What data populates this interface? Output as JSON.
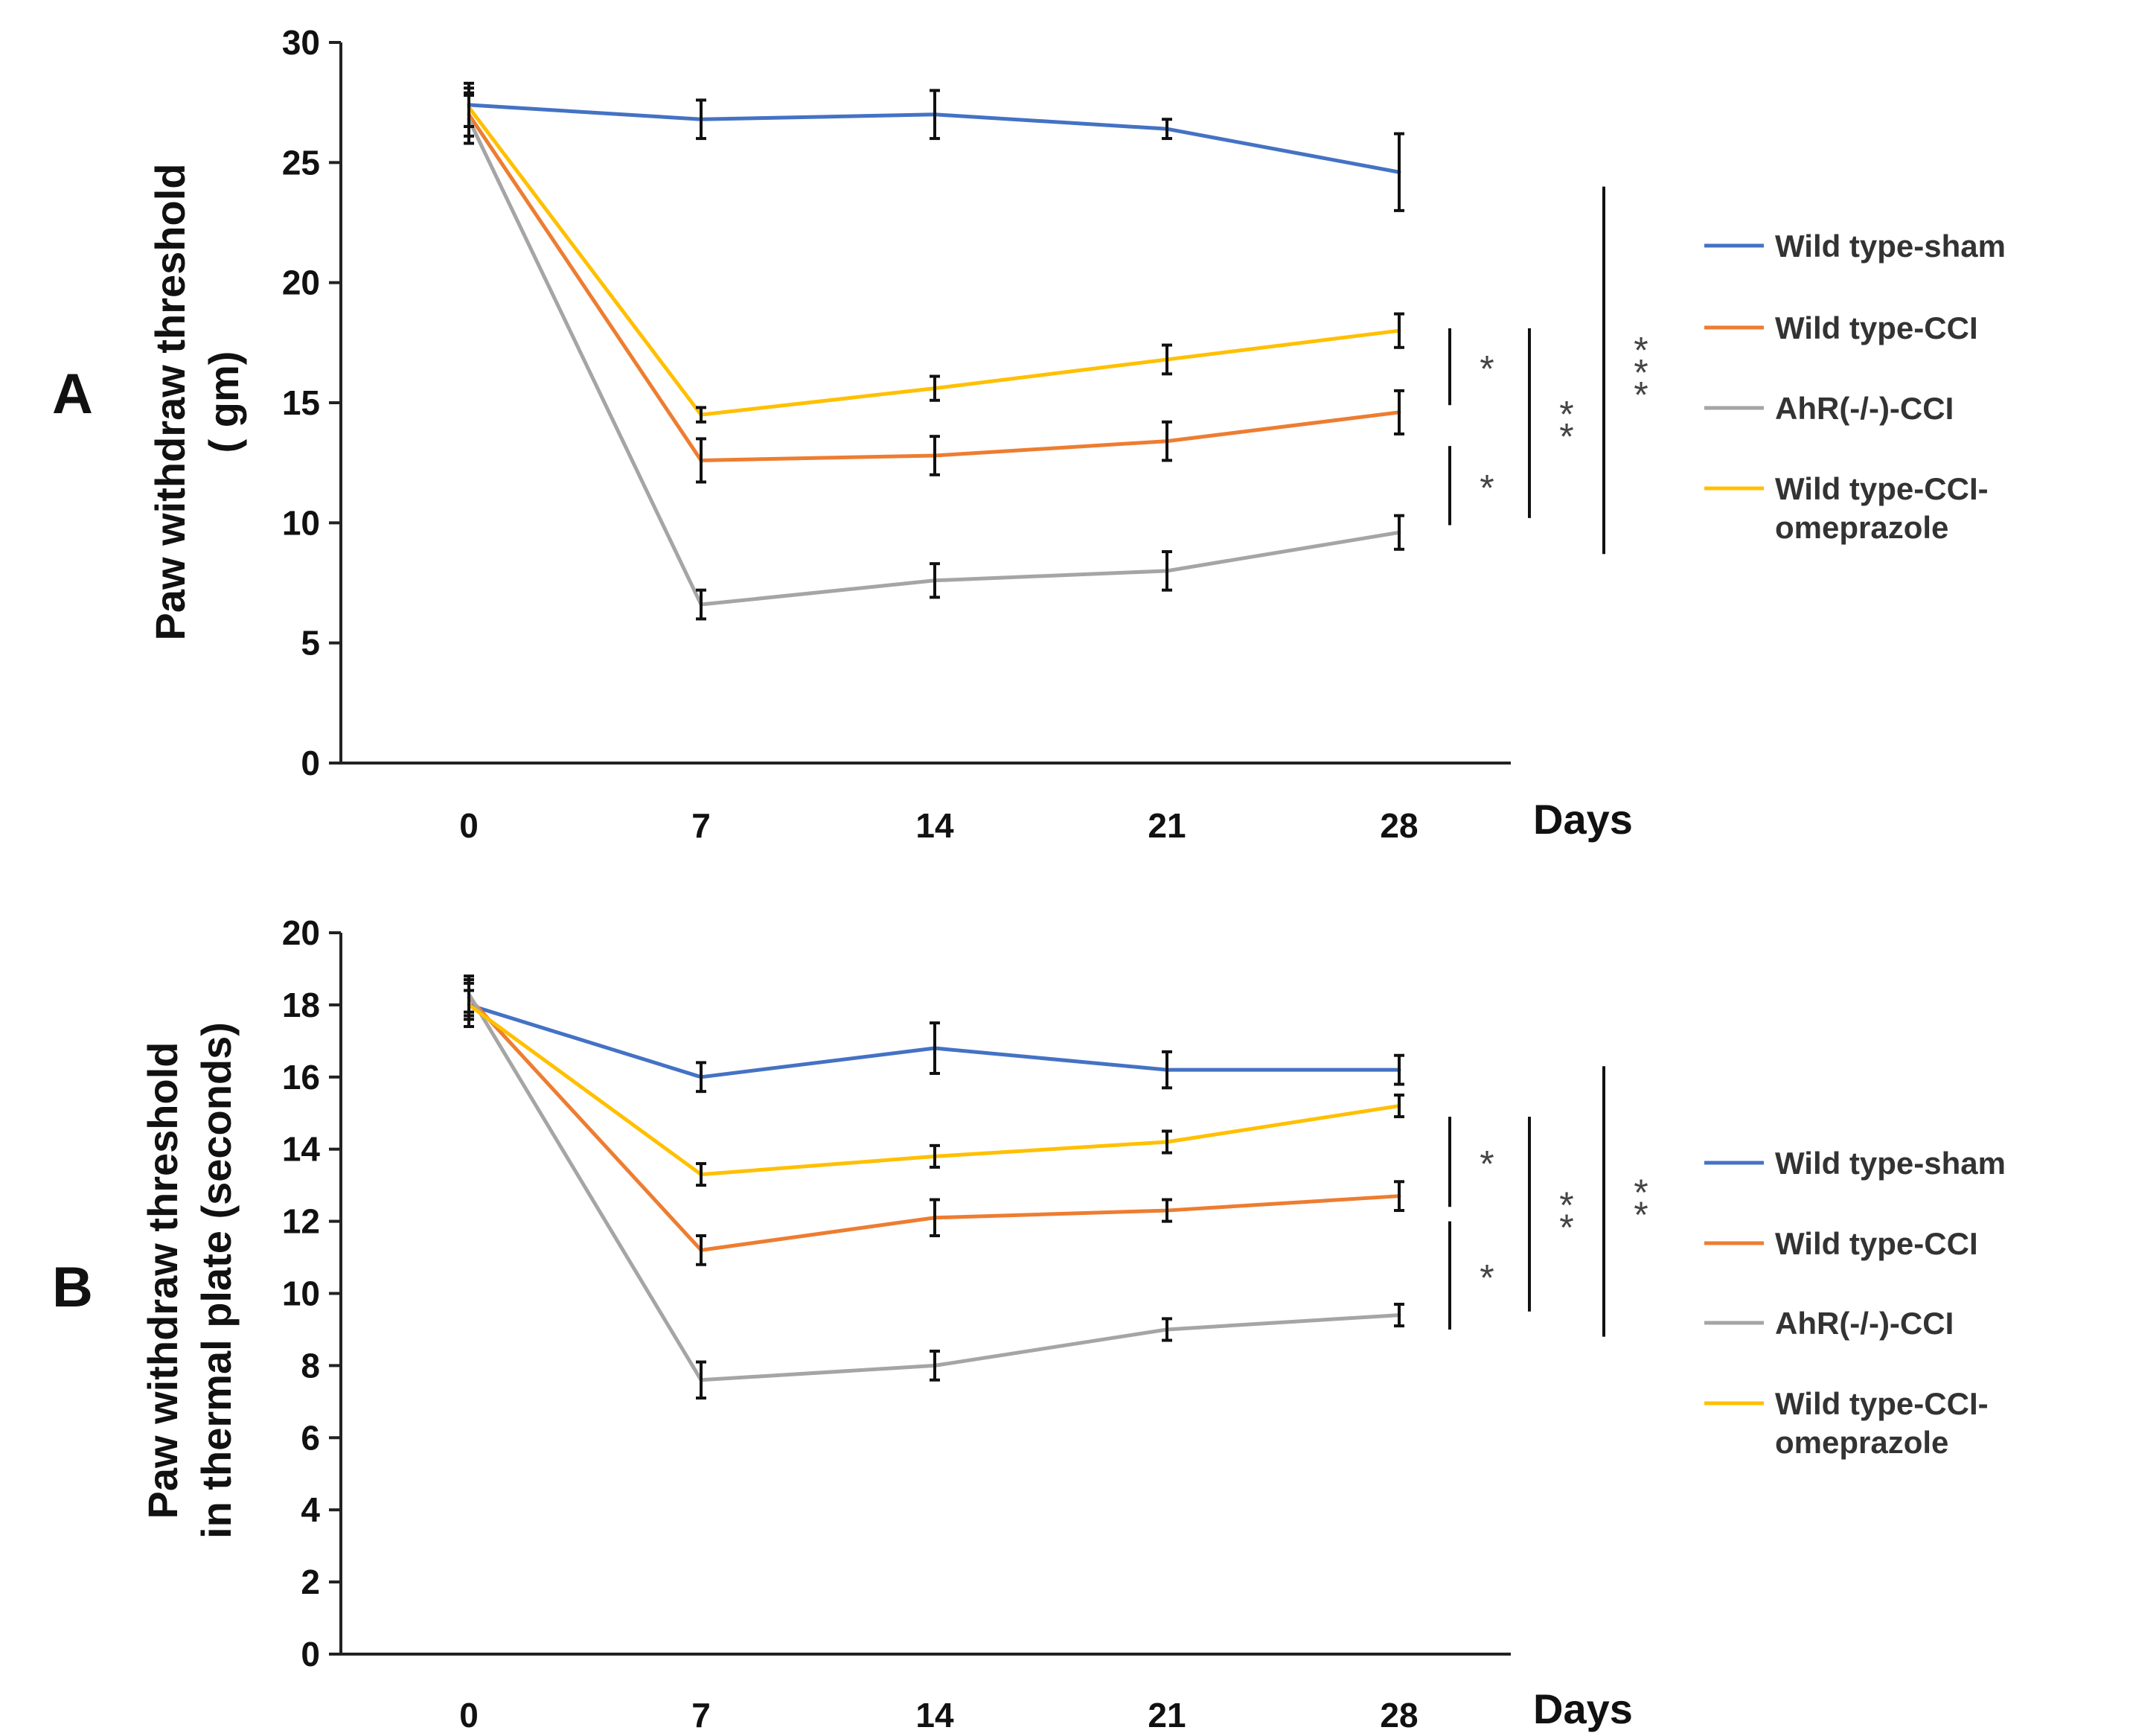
{
  "colors": {
    "wild_type_sham": "#4472C4",
    "wild_type_cci": "#ED7D31",
    "ahr_cci": "#A5A5A5",
    "wild_type_cci_omeprazole": "#FFC000"
  },
  "chart_data": [
    {
      "type": "line",
      "panel_label": "A",
      "xlabel": "Days",
      "ylabel_lines": [
        "Paw withdraw threshold",
        "( gm)"
      ],
      "x": [
        0,
        7,
        14,
        21,
        28
      ],
      "x_tick_labels": [
        "0",
        "7",
        "14",
        "21",
        "28"
      ],
      "ylim": [
        0,
        30
      ],
      "y_ticks": [
        0,
        5,
        10,
        15,
        20,
        25,
        30
      ],
      "y_tick_labels": [
        "0",
        "5",
        "10",
        "15",
        "20",
        "25",
        "30"
      ],
      "grid": false,
      "legend_position": "right",
      "series": [
        {
          "name": "Wild type-sham",
          "color_key": "wild_type_sham",
          "values": [
            27.4,
            26.8,
            27.0,
            26.4,
            24.6
          ],
          "errors": [
            0.9,
            0.8,
            1.0,
            0.4,
            1.6
          ]
        },
        {
          "name": "Wild type-CCI",
          "color_key": "wild_type_cci",
          "values": [
            27.0,
            12.6,
            12.8,
            13.4,
            14.6
          ],
          "errors": [
            0.9,
            0.9,
            0.8,
            0.8,
            0.9
          ]
        },
        {
          "name": "AhR(-/-)-CCI",
          "color_key": "ahr_cci",
          "values": [
            26.8,
            6.6,
            7.6,
            8.0,
            9.6
          ],
          "errors": [
            1.0,
            0.6,
            0.7,
            0.8,
            0.7
          ]
        },
        {
          "name": "Wild type-CCI-omeprazole",
          "color_key": "wild_type_cci_omeprazole",
          "values": [
            27.3,
            14.5,
            15.6,
            16.8,
            18.0
          ],
          "errors": [
            0.8,
            0.3,
            0.5,
            0.6,
            0.7
          ]
        }
      ],
      "legend_items": [
        {
          "lines": [
            "Wild type-sham"
          ],
          "color_key": "wild_type_sham"
        },
        {
          "lines": [
            "Wild type-CCI"
          ],
          "color_key": "wild_type_cci"
        },
        {
          "lines": [
            "AhR(-/-)-CCI"
          ],
          "color_key": "ahr_cci"
        },
        {
          "lines": [
            "Wild type-CCI-",
            "omeprazole"
          ],
          "color_key": "wild_type_cci_omeprazole"
        }
      ],
      "significance": [
        {
          "y_range": [
            14.9,
            18.1
          ],
          "stars": [
            "*"
          ]
        },
        {
          "y_range": [
            9.9,
            13.2
          ],
          "stars": [
            "*"
          ]
        },
        {
          "y_range": [
            10.2,
            18.1
          ],
          "stars": [
            "*",
            "*"
          ]
        },
        {
          "y_range": [
            8.7,
            24.0
          ],
          "stars": [
            "*",
            "*",
            "*"
          ]
        }
      ]
    },
    {
      "type": "line",
      "panel_label": "B",
      "xlabel": "Days",
      "ylabel_lines": [
        "Paw withdraw threshold",
        "in thermal plate (seconds)"
      ],
      "x": [
        0,
        7,
        14,
        21,
        28
      ],
      "x_tick_labels": [
        "0",
        "7",
        "14",
        "21",
        "28"
      ],
      "ylim": [
        0,
        20
      ],
      "y_ticks": [
        0,
        2,
        4,
        6,
        8,
        10,
        12,
        14,
        16,
        18,
        20
      ],
      "y_tick_labels": [
        "0",
        "2",
        "4",
        "6",
        "8",
        "10",
        "12",
        "14",
        "16",
        "18",
        "20"
      ],
      "grid": false,
      "legend_position": "right",
      "series": [
        {
          "name": "Wild type-sham",
          "color_key": "wild_type_sham",
          "values": [
            18.0,
            16.0,
            16.8,
            16.2,
            16.2
          ],
          "errors": [
            0.6,
            0.4,
            0.7,
            0.5,
            0.4
          ]
        },
        {
          "name": "Wild type-CCI",
          "color_key": "wild_type_cci",
          "values": [
            18.2,
            11.2,
            12.1,
            12.3,
            12.7
          ],
          "errors": [
            0.5,
            0.4,
            0.5,
            0.3,
            0.4
          ]
        },
        {
          "name": "AhR(-/-)-CCI",
          "color_key": "ahr_cci",
          "values": [
            18.3,
            7.6,
            8.0,
            9.0,
            9.4
          ],
          "errors": [
            0.5,
            0.5,
            0.4,
            0.3,
            0.3
          ]
        },
        {
          "name": "Wild type-CCI-omeprazole",
          "color_key": "wild_type_cci_omeprazole",
          "values": [
            18.0,
            13.3,
            13.8,
            14.2,
            15.2
          ],
          "errors": [
            0.4,
            0.3,
            0.3,
            0.3,
            0.3
          ]
        }
      ],
      "legend_items": [
        {
          "lines": [
            "Wild type-sham"
          ],
          "color_key": "wild_type_sham"
        },
        {
          "lines": [
            "Wild type-CCI"
          ],
          "color_key": "wild_type_cci"
        },
        {
          "lines": [
            "AhR(-/-)-CCI"
          ],
          "color_key": "ahr_cci"
        },
        {
          "lines": [
            "Wild type-CCI-",
            "omeprazole"
          ],
          "color_key": "wild_type_cci_omeprazole"
        }
      ],
      "significance": [
        {
          "y_range": [
            12.4,
            14.9
          ],
          "stars": [
            "*"
          ]
        },
        {
          "y_range": [
            9.0,
            12.0
          ],
          "stars": [
            "*"
          ]
        },
        {
          "y_range": [
            9.5,
            14.9
          ],
          "stars": [
            "*",
            "*"
          ]
        },
        {
          "y_range": [
            8.8,
            16.3
          ],
          "stars": [
            "*",
            "*"
          ]
        }
      ]
    }
  ]
}
